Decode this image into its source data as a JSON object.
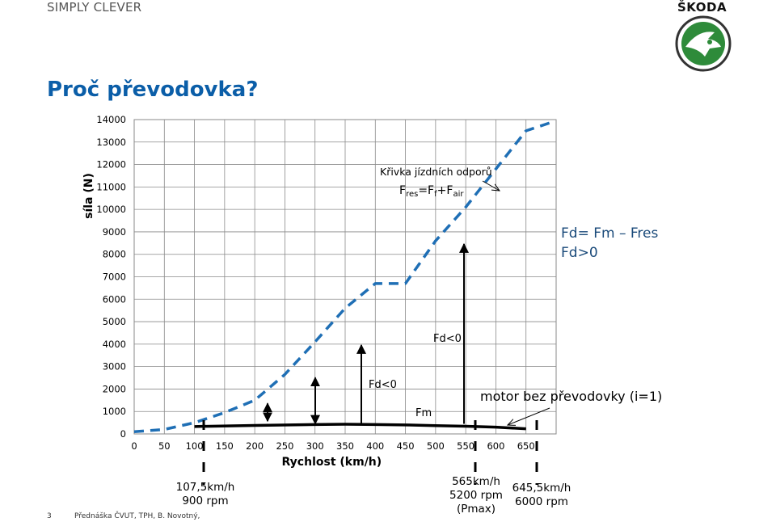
{
  "header": {
    "brand_left": "SIMPLY CLEVER",
    "brand_right": "ŠKODA",
    "logo_icon": "skoda-winged-arrow-logo",
    "accent": "#0b5ea8"
  },
  "page_title": "Proč převodovka?",
  "footer": {
    "page_number": "3",
    "text": "Přednáška ČVUT, TPH, B. Novotný,"
  },
  "chart_data": {
    "type": "line",
    "xlabel": "Rychlost (km/h)",
    "ylabel": "síla (N)",
    "x_ticks": [
      0,
      50,
      100,
      150,
      200,
      250,
      300,
      350,
      400,
      450,
      500,
      550,
      600,
      650
    ],
    "y_ticks": [
      0,
      1000,
      2000,
      3000,
      4000,
      5000,
      6000,
      7000,
      8000,
      9000,
      10000,
      11000,
      12000,
      13000,
      14000
    ],
    "xlim": [
      0,
      700
    ],
    "ylim": [
      0,
      14000
    ],
    "grid": true,
    "series": [
      {
        "name": "Křivka jízdních odporů",
        "style": "dashed",
        "color": "#1f6fb5",
        "x": [
          0,
          50,
          100,
          150,
          200,
          250,
          300,
          350,
          400,
          450,
          500,
          550,
          600,
          650
        ],
        "y": [
          100,
          200,
          500,
          950,
          1500,
          2650,
          4100,
          5600,
          6700,
          6700,
          8600,
          10100,
          11800,
          13500
        ]
      },
      {
        "name": "Fm",
        "style": "solid",
        "color": "#000000",
        "x": [
          100,
          200,
          300,
          350,
          400,
          450,
          500,
          550,
          600,
          650
        ],
        "y": [
          330,
          380,
          420,
          430,
          420,
          400,
          370,
          340,
          300,
          230
        ]
      }
    ],
    "force_arrows": [
      {
        "x": 200,
        "y_from": 500,
        "y_to": 1500,
        "style": "double"
      },
      {
        "x": 300,
        "y_from": 380,
        "y_to": 2650,
        "style": "double"
      },
      {
        "x": 350,
        "y_from": 410,
        "y_to": 4100,
        "style": "up"
      },
      {
        "x": 510,
        "y_from": 380,
        "y_to": 8600,
        "style": "up"
      }
    ],
    "marker_lines": [
      {
        "x": 107.5,
        "label_lines": [
          "107,5km/h",
          "900 rpm"
        ]
      },
      {
        "x": 565,
        "label_lines": [
          "565km/h",
          "5200 rpm",
          "(Pmax)"
        ]
      },
      {
        "x": 645.5,
        "label_lines": [
          "645,5km/h",
          "6000 rpm"
        ]
      }
    ],
    "annotations": {
      "curve_label": "Křivka jízdních odporů",
      "formula": {
        "base": "F",
        "res_sub": "res",
        "eq": "=F",
        "f_sub": "f",
        "plus": "+F",
        "air_sub": "air"
      },
      "fd_eq": "Fd= Fm – Fres",
      "fd_pos": "Fd>0",
      "fd_neg_upper": "Fd<0",
      "fd_neg_lower": "Fd<0",
      "fm_label": "Fm",
      "motor_label": "motor bez převodovky (i=1)"
    }
  }
}
